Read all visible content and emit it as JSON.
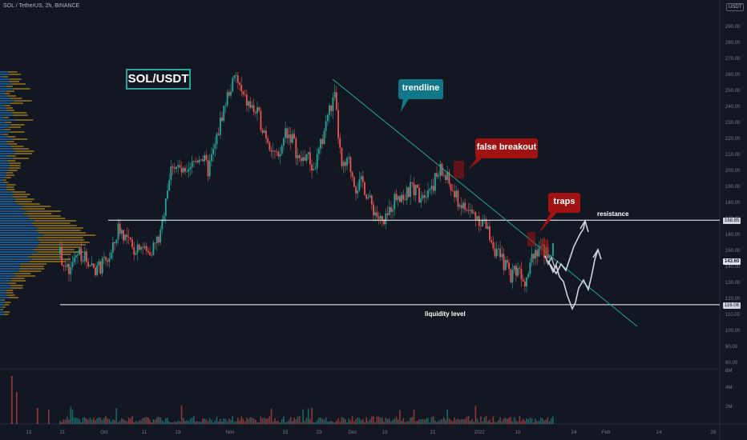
{
  "header": {
    "symbol_line": "SOL / TetherUS, 2h, BINANCE",
    "currency_badge": "USDT"
  },
  "title_box": "SOL/USDT",
  "annotations": {
    "trendline": "trendline",
    "false_breakout": "false breakout",
    "traps": "traps",
    "resistance": "resistance",
    "liquidity": "liquidity level"
  },
  "price_tags": {
    "resistance": "168.85",
    "current": "143.60",
    "liquidity": "116.06"
  },
  "colors": {
    "up": "#26a69a",
    "down": "#ef5350",
    "trendline": "#26a69a",
    "projection": "#d1d4dc",
    "profile_blue": "#2196f3",
    "profile_yellow": "#f5b914"
  },
  "chart_data": {
    "type": "candlestick",
    "y_axis": {
      "range": [
        80,
        300
      ],
      "ticks": [
        "290.00",
        "280.00",
        "270.00",
        "260.00",
        "250.00",
        "240.00",
        "230.00",
        "220.00",
        "210.00",
        "200.00",
        "190.00",
        "180.00",
        "170.00",
        "160.00",
        "150.00",
        "140.00",
        "130.00",
        "120.00",
        "110.00",
        "100.00",
        "90.00",
        "80.00"
      ]
    },
    "volume_axis": {
      "ticks": [
        "6M",
        "4M",
        "2M"
      ]
    },
    "x_axis": {
      "ticks": [
        "13",
        "21",
        "Oct",
        "11",
        "19",
        "Nov",
        "15",
        "23",
        "Dec",
        "13",
        "21",
        "2022",
        "10",
        "24",
        "Feb",
        "14",
        "28"
      ]
    },
    "price_path": [
      [
        0,
        148
      ],
      [
        4,
        140
      ],
      [
        8,
        135
      ],
      [
        12,
        145
      ],
      [
        16,
        150
      ],
      [
        20,
        146
      ],
      [
        26,
        142
      ],
      [
        32,
        138
      ],
      [
        38,
        142
      ],
      [
        44,
        148
      ],
      [
        50,
        165
      ],
      [
        56,
        158
      ],
      [
        62,
        150
      ],
      [
        68,
        155
      ],
      [
        74,
        148
      ],
      [
        80,
        153
      ],
      [
        86,
        160
      ],
      [
        90,
        185
      ],
      [
        96,
        205
      ],
      [
        102,
        200
      ],
      [
        108,
        195
      ],
      [
        114,
        205
      ],
      [
        120,
        210
      ],
      [
        126,
        200
      ],
      [
        132,
        215
      ],
      [
        138,
        235
      ],
      [
        144,
        250
      ],
      [
        150,
        258
      ],
      [
        156,
        245
      ],
      [
        162,
        240
      ],
      [
        168,
        235
      ],
      [
        174,
        225
      ],
      [
        180,
        215
      ],
      [
        186,
        205
      ],
      [
        192,
        225
      ],
      [
        198,
        220
      ],
      [
        204,
        205
      ],
      [
        210,
        210
      ],
      [
        216,
        200
      ],
      [
        222,
        215
      ],
      [
        228,
        235
      ],
      [
        234,
        245
      ],
      [
        240,
        200
      ],
      [
        246,
        205
      ],
      [
        252,
        190
      ],
      [
        258,
        192
      ],
      [
        264,
        180
      ],
      [
        270,
        172
      ],
      [
        276,
        165
      ],
      [
        282,
        178
      ],
      [
        288,
        186
      ],
      [
        294,
        183
      ],
      [
        300,
        190
      ],
      [
        306,
        185
      ],
      [
        312,
        188
      ],
      [
        318,
        192
      ],
      [
        324,
        200
      ],
      [
        330,
        194
      ],
      [
        336,
        184
      ],
      [
        342,
        178
      ],
      [
        348,
        174
      ],
      [
        354,
        172
      ],
      [
        360,
        168
      ],
      [
        366,
        160
      ],
      [
        372,
        148
      ],
      [
        378,
        142
      ],
      [
        384,
        135
      ],
      [
        390,
        140
      ],
      [
        396,
        132
      ],
      [
        402,
        148
      ],
      [
        408,
        152
      ],
      [
        414,
        148
      ],
      [
        420,
        150
      ]
    ],
    "horizontal_levels": [
      168.85,
      116.06
    ],
    "trendline": {
      "from": [
        0,
        265
      ],
      "to": [
        0,
        100
      ]
    },
    "current_price": 143.6
  }
}
